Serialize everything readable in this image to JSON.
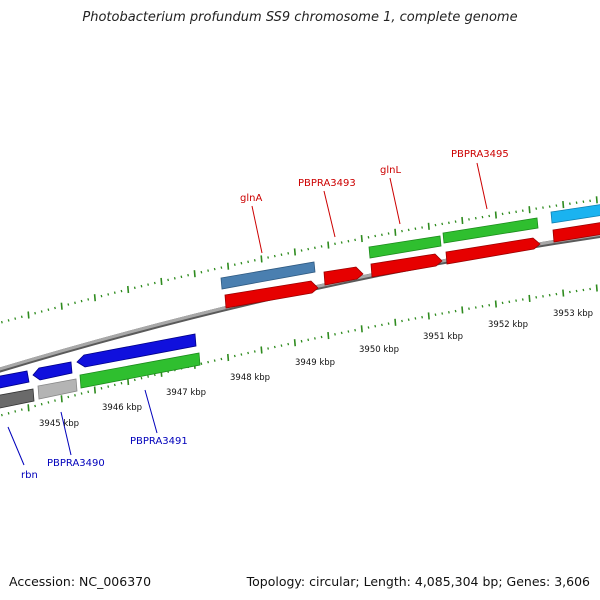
{
  "title": "Photobacterium profundum SS9 chromosome 1, complete genome",
  "footer": {
    "accession": "Accession: NC_006370",
    "summary": "Topology: circular; Length: 4,085,304 bp; Genes: 3,606"
  },
  "colors": {
    "backbone": "#8c8c8c",
    "tick": "#2e8b1e",
    "cds_red": "#e60000",
    "cds_green": "#2fbf2f",
    "cds_blue": "#1010dd",
    "cds_steel": "#4a7fb0",
    "cds_cyan": "#1ab3f0",
    "cds_gray": "#6a6a6a",
    "cds_lightgray": "#b4b4b4",
    "label_top": "#cc0000",
    "label_bottom": "#0000bb"
  },
  "kbp_labels": [
    "3945 kbp",
    "3946 kbp",
    "3947 kbp",
    "3948 kbp",
    "3949 kbp",
    "3950 kbp",
    "3951 kbp",
    "3952 kbp",
    "3953 kbp"
  ],
  "gene_labels_top": [
    "glnA",
    "PBPRA3493",
    "glnL",
    "PBPRA3495"
  ],
  "gene_labels_bottom": [
    "rbn",
    "PBPRA3490",
    "PBPRA3491"
  ]
}
